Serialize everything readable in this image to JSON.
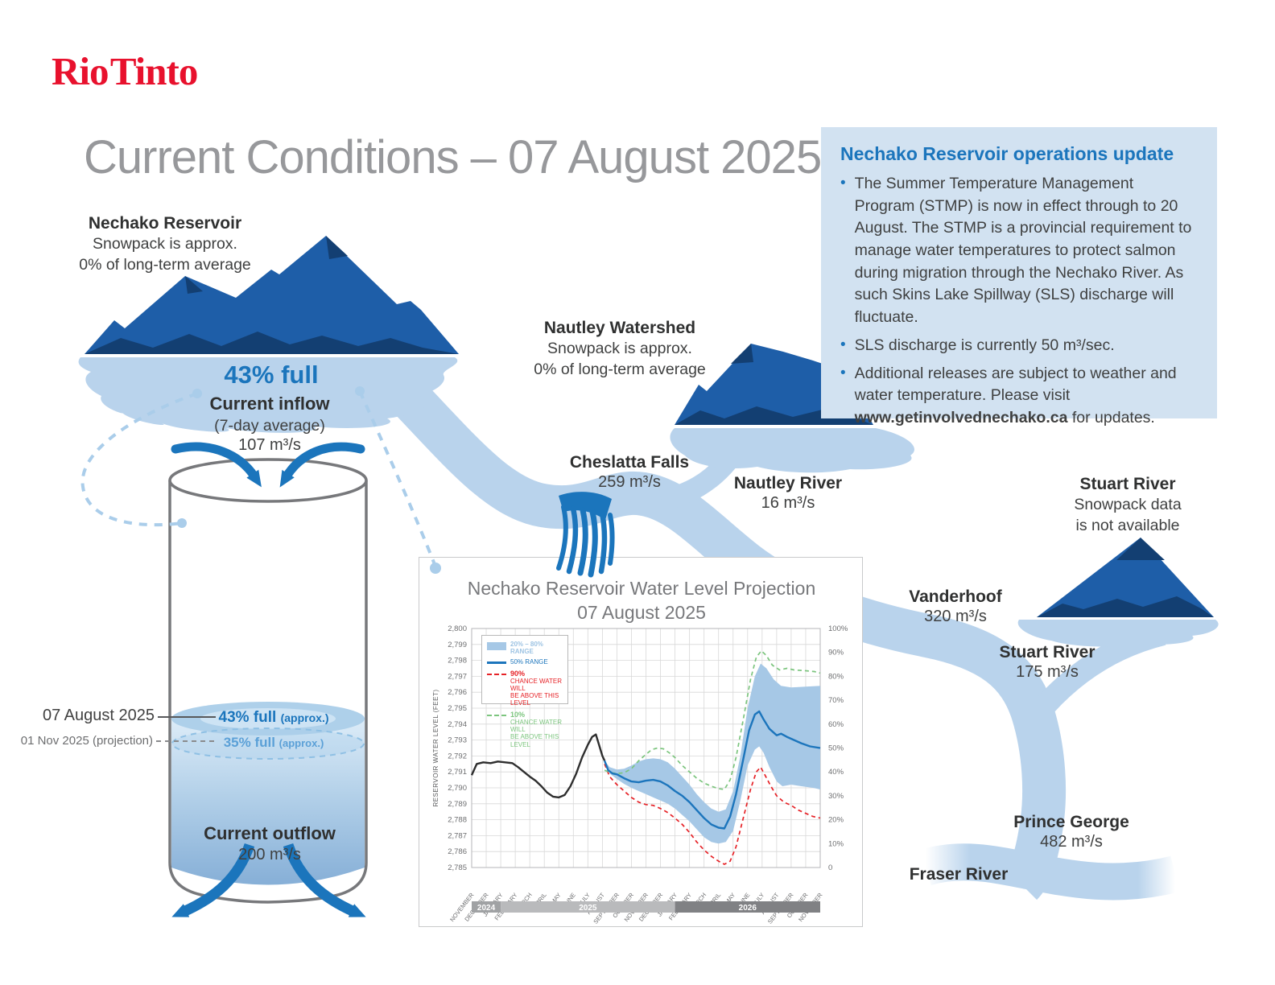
{
  "brand": {
    "logo_text": "Rio Tinto"
  },
  "page_title": "Current Conditions – 07 August 2025",
  "update_box": {
    "title": "Nechako Reservoir operations update",
    "bullet1": "The Summer Temperature Management Program (STMP) is now in effect through to 20 August. The STMP is a provincial requirement to manage water temperatures to protect salmon during migration through the Nechako River. As such Skins Lake Spillway (SLS) discharge will fluctuate.",
    "bullet2": "SLS discharge is currently 50 m³/sec.",
    "bullet3_text": "Additional releases are subject to weather and water temperature. Please visit ",
    "bullet3_link": "www.getinvolvednechako.ca",
    "bullet3_suffix": " for updates."
  },
  "reservoir": {
    "name": "Nechako Reservoir",
    "snowpack_line1": "Snowpack is approx.",
    "snowpack_line2": "0% of long-term average",
    "fill_status": "43% full"
  },
  "inflow": {
    "title": "Current inflow",
    "subtitle": "(7-day average)",
    "value": "107 m³/s"
  },
  "tank": {
    "date_label": "07 August 2025",
    "projection_label": "01 Nov 2025 (projection)",
    "current_level": "43% full",
    "current_level_note": "(approx.)",
    "projected_level": "35% full",
    "projected_level_note": "(approx.)"
  },
  "outflow": {
    "title": "Current outflow",
    "value": "200 m³/s"
  },
  "cheslatta": {
    "name": "Cheslatta Falls",
    "value": "259 m³/s"
  },
  "nautley_watershed": {
    "name": "Nautley Watershed",
    "snowpack_line1": "Snowpack is approx.",
    "snowpack_line2": "0% of long-term average"
  },
  "nautley_river": {
    "name": "Nautley River",
    "value": "16 m³/s"
  },
  "stuart_watershed": {
    "name": "Stuart River",
    "snowpack_line1": "Snowpack data",
    "snowpack_line2": "is not available"
  },
  "vanderhoof": {
    "name": "Vanderhoof",
    "value": "320 m³/s"
  },
  "stuart_river": {
    "name": "Stuart River",
    "value": "175 m³/s"
  },
  "prince_george": {
    "name": "Prince George",
    "value": "482 m³/s"
  },
  "fraser_river": {
    "name": "Fraser River"
  },
  "colors": {
    "brand_red": "#e8112d",
    "accent_blue": "#1b75bc",
    "river_blue": "#b9d3ec",
    "mountain_blue": "#1e5ea8",
    "mountain_dark": "#133f72",
    "box_bg": "#d2e2f1",
    "title_gray": "#97989b"
  },
  "chart_data": {
    "type": "line",
    "title": "Nechako Reservoir Water Level Projection",
    "subtitle": "07 August 2025",
    "ylabel": "RESERVOIR WATER LEVEL (FEET)",
    "ylim": [
      2785,
      2800
    ],
    "y2lim": [
      0,
      100
    ],
    "grid": true,
    "legend_position": "top-left",
    "legend": {
      "range_label": "20% – 80% RANGE",
      "median_label": "50% RANGE",
      "p90_head": "90%",
      "p90_sub1": "CHANCE WATER WILL",
      "p90_sub2": "BE ABOVE THIS LEVEL",
      "p10_head": "10%",
      "p10_sub1": "CHANCE WATER WILL",
      "p10_sub2": "BE ABOVE THIS LEVEL"
    },
    "x_months": [
      "NOVEMBER",
      "DECEMBER",
      "JANUARY",
      "FEBRUARY",
      "MARCH",
      "APRIL",
      "MAY",
      "JUNE",
      "JULY",
      "AUGUST",
      "SEPTEMBER",
      "OCTOBER",
      "NOVEMBER",
      "DECEMBER",
      "JANUARY",
      "FEBRUARY",
      "MARCH",
      "APRIL",
      "MAY",
      "JUNE",
      "JULY",
      "AUGUST",
      "SEPTEMBER",
      "OCTOBER",
      "NOVEMBER"
    ],
    "year_bands": [
      {
        "label": "2024",
        "from": 0,
        "to": 2,
        "color": "#a0a2a4"
      },
      {
        "label": "2025",
        "from": 2,
        "to": 14,
        "color": "#b9babc"
      },
      {
        "label": "2026",
        "from": 14,
        "to": 24,
        "color": "#808184"
      }
    ],
    "series": [
      {
        "name": "Historical water level",
        "type": "line",
        "color": "#2e2e2e",
        "width": 2.4,
        "points": [
          [
            0,
            2790.8
          ],
          [
            0.35,
            2791.5
          ],
          [
            0.8,
            2791.6
          ],
          [
            1.3,
            2791.55
          ],
          [
            1.8,
            2791.65
          ],
          [
            2.3,
            2791.6
          ],
          [
            2.8,
            2791.55
          ],
          [
            3.2,
            2791.3
          ],
          [
            3.6,
            2791.0
          ],
          [
            4,
            2790.7
          ],
          [
            4.4,
            2790.45
          ],
          [
            4.8,
            2790.1
          ],
          [
            5.2,
            2789.7
          ],
          [
            5.6,
            2789.45
          ],
          [
            6,
            2789.4
          ],
          [
            6.4,
            2789.55
          ],
          [
            6.8,
            2790.1
          ],
          [
            7.2,
            2790.9
          ],
          [
            7.6,
            2791.9
          ],
          [
            8,
            2792.7
          ],
          [
            8.3,
            2793.2
          ],
          [
            8.55,
            2793.35
          ],
          [
            8.8,
            2792.6
          ],
          [
            9,
            2792.0
          ],
          [
            9.15,
            2791.7
          ]
        ]
      },
      {
        "name": "20% - 80% RANGE",
        "type": "band",
        "color": "#a6c8e6",
        "upper": [
          [
            9.15,
            2791.7
          ],
          [
            9.5,
            2791.3
          ],
          [
            10,
            2791.15
          ],
          [
            10.5,
            2791.2
          ],
          [
            11,
            2791.4
          ],
          [
            11.5,
            2791.65
          ],
          [
            12,
            2791.8
          ],
          [
            12.5,
            2791.85
          ],
          [
            13,
            2791.8
          ],
          [
            13.5,
            2791.6
          ],
          [
            14,
            2791.2
          ],
          [
            14.5,
            2790.7
          ],
          [
            15,
            2790.2
          ],
          [
            15.5,
            2789.6
          ],
          [
            16,
            2789.1
          ],
          [
            16.5,
            2788.7
          ],
          [
            17,
            2788.5
          ],
          [
            17.5,
            2788.65
          ],
          [
            18,
            2789.8
          ],
          [
            18.5,
            2792.0
          ],
          [
            19,
            2795.0
          ],
          [
            19.5,
            2797.0
          ],
          [
            19.9,
            2797.8
          ],
          [
            20.3,
            2797.5
          ],
          [
            20.8,
            2796.8
          ],
          [
            21.3,
            2796.4
          ],
          [
            22,
            2796.3
          ],
          [
            23,
            2796.35
          ],
          [
            24,
            2796.4
          ]
        ],
        "lower": [
          [
            9.15,
            2791.6
          ],
          [
            9.5,
            2790.9
          ],
          [
            10,
            2790.55
          ],
          [
            10.5,
            2790.25
          ],
          [
            11,
            2790.0
          ],
          [
            11.5,
            2789.8
          ],
          [
            12,
            2789.6
          ],
          [
            12.5,
            2789.4
          ],
          [
            13,
            2789.2
          ],
          [
            13.5,
            2789.0
          ],
          [
            14,
            2788.7
          ],
          [
            14.5,
            2788.3
          ],
          [
            15,
            2787.9
          ],
          [
            15.5,
            2787.4
          ],
          [
            16,
            2786.9
          ],
          [
            16.5,
            2786.6
          ],
          [
            17,
            2786.5
          ],
          [
            17.5,
            2786.6
          ],
          [
            18,
            2787.3
          ],
          [
            18.5,
            2789.2
          ],
          [
            19,
            2791.4
          ],
          [
            19.5,
            2792.4
          ],
          [
            19.8,
            2792.6
          ],
          [
            20.1,
            2792.2
          ],
          [
            20.5,
            2791.3
          ],
          [
            21,
            2790.4
          ],
          [
            21.4,
            2790.1
          ],
          [
            22,
            2790.2
          ],
          [
            22.7,
            2790.1
          ],
          [
            23.5,
            2790.0
          ],
          [
            24,
            2789.9
          ]
        ]
      },
      {
        "name": "50% RANGE",
        "type": "line",
        "color": "#1c75bc",
        "width": 2.4,
        "points": [
          [
            9.15,
            2791.7
          ],
          [
            9.4,
            2791.1
          ],
          [
            9.7,
            2790.9
          ],
          [
            10,
            2790.85
          ],
          [
            10.5,
            2790.6
          ],
          [
            11,
            2790.4
          ],
          [
            11.5,
            2790.35
          ],
          [
            12,
            2790.45
          ],
          [
            12.5,
            2790.5
          ],
          [
            13,
            2790.4
          ],
          [
            13.5,
            2790.15
          ],
          [
            14,
            2789.8
          ],
          [
            14.5,
            2789.5
          ],
          [
            15,
            2789.1
          ],
          [
            15.5,
            2788.6
          ],
          [
            16,
            2788.1
          ],
          [
            16.5,
            2787.7
          ],
          [
            17,
            2787.5
          ],
          [
            17.4,
            2787.45
          ],
          [
            17.8,
            2788.2
          ],
          [
            18.2,
            2789.6
          ],
          [
            18.7,
            2791.8
          ],
          [
            19.1,
            2793.6
          ],
          [
            19.5,
            2794.6
          ],
          [
            19.8,
            2794.8
          ],
          [
            20.1,
            2794.3
          ],
          [
            20.5,
            2793.7
          ],
          [
            21,
            2793.3
          ],
          [
            21.3,
            2793.4
          ],
          [
            21.7,
            2793.2
          ],
          [
            22.2,
            2793.0
          ],
          [
            22.7,
            2792.8
          ],
          [
            23.3,
            2792.6
          ],
          [
            24,
            2792.5
          ]
        ]
      },
      {
        "name": "90% CHANCE WATER WILL BE ABOVE THIS LEVEL",
        "type": "dashed",
        "color": "#e62227",
        "width": 1.7,
        "points": [
          [
            9.15,
            2791.5
          ],
          [
            9.5,
            2790.7
          ],
          [
            10,
            2790.2
          ],
          [
            10.5,
            2789.8
          ],
          [
            11,
            2789.4
          ],
          [
            11.5,
            2789.1
          ],
          [
            12,
            2788.95
          ],
          [
            12.5,
            2788.9
          ],
          [
            13,
            2788.7
          ],
          [
            13.5,
            2788.45
          ],
          [
            14,
            2788.1
          ],
          [
            14.5,
            2787.7
          ],
          [
            15,
            2787.2
          ],
          [
            15.5,
            2786.6
          ],
          [
            16,
            2786.1
          ],
          [
            16.5,
            2785.7
          ],
          [
            17,
            2785.4
          ],
          [
            17.4,
            2785.2
          ],
          [
            17.8,
            2785.4
          ],
          [
            18.2,
            2786.3
          ],
          [
            18.7,
            2788.1
          ],
          [
            19.2,
            2789.9
          ],
          [
            19.6,
            2791.0
          ],
          [
            19.9,
            2791.3
          ],
          [
            20.2,
            2790.8
          ],
          [
            20.6,
            2790.1
          ],
          [
            21,
            2789.5
          ],
          [
            21.5,
            2789.1
          ],
          [
            22,
            2788.9
          ],
          [
            22.5,
            2788.6
          ],
          [
            23,
            2788.4
          ],
          [
            23.5,
            2788.2
          ],
          [
            24,
            2788.1
          ]
        ]
      },
      {
        "name": "10% CHANCE WATER WILL BE ABOVE THIS LEVEL",
        "type": "dashed",
        "color": "#7cc57e",
        "width": 1.7,
        "points": [
          [
            9.15,
            2791.1
          ],
          [
            9.6,
            2790.95
          ],
          [
            10,
            2790.9
          ],
          [
            10.5,
            2790.95
          ],
          [
            11,
            2791.2
          ],
          [
            11.5,
            2791.7
          ],
          [
            12,
            2792.1
          ],
          [
            12.4,
            2792.4
          ],
          [
            12.8,
            2792.5
          ],
          [
            13.2,
            2792.45
          ],
          [
            13.6,
            2792.2
          ],
          [
            14,
            2791.9
          ],
          [
            14.5,
            2791.4
          ],
          [
            15,
            2791.0
          ],
          [
            15.5,
            2790.6
          ],
          [
            16,
            2790.3
          ],
          [
            16.5,
            2790.1
          ],
          [
            17,
            2789.95
          ],
          [
            17.4,
            2789.9
          ],
          [
            17.8,
            2790.5
          ],
          [
            18.2,
            2791.9
          ],
          [
            18.7,
            2794.3
          ],
          [
            19.2,
            2796.8
          ],
          [
            19.6,
            2798.2
          ],
          [
            19.95,
            2798.6
          ],
          [
            20.3,
            2798.3
          ],
          [
            20.7,
            2797.7
          ],
          [
            21.2,
            2797.4
          ],
          [
            21.7,
            2797.5
          ],
          [
            22.2,
            2797.4
          ],
          [
            23,
            2797.35
          ],
          [
            23.6,
            2797.3
          ],
          [
            24,
            2797.2
          ]
        ]
      }
    ]
  }
}
